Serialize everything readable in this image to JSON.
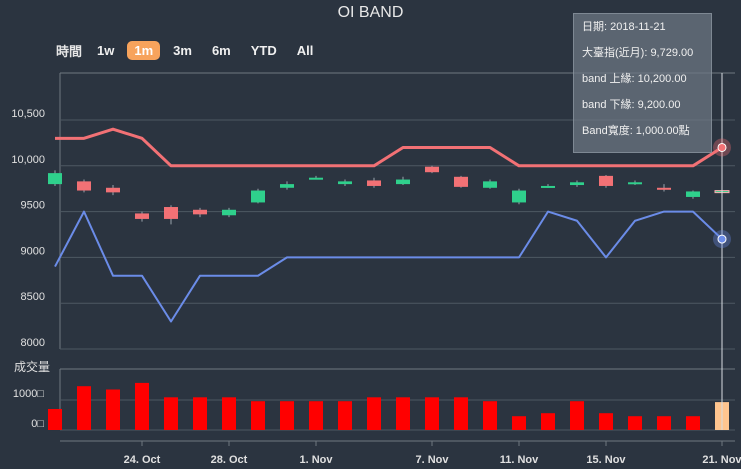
{
  "title": "OI BAND",
  "zoom": {
    "label": "時間",
    "buttons": [
      "1w",
      "1m",
      "3m",
      "6m",
      "YTD",
      "All"
    ],
    "selected": "1m"
  },
  "tooltip": {
    "date": "日期: 2018-11-21",
    "price": "大臺指(近月): 9,729.00",
    "upper": "band 上緣: 10,200.00",
    "lower": "band 下緣: 9,200.00",
    "width": "Band寬度: 1,000.00點"
  },
  "chart_data": {
    "type": "line",
    "dates": [
      "10-19",
      "10-22",
      "10-23",
      "10-24",
      "10-25",
      "10-26",
      "10-29",
      "10-30",
      "10-31",
      "11-01",
      "11-02",
      "11-05",
      "11-06",
      "11-07",
      "11-08",
      "11-09",
      "11-12",
      "11-13",
      "11-14",
      "11-15",
      "11-16",
      "11-19",
      "11-20",
      "11-21"
    ],
    "x_tick_labels": [
      {
        "date": "10-24",
        "label": "24. Oct"
      },
      {
        "date": "10-29",
        "label": "28. Oct"
      },
      {
        "date": "11-01",
        "label": "1. Nov"
      },
      {
        "date": "11-07",
        "label": "7. Nov"
      },
      {
        "date": "11-12",
        "label": "11. Nov"
      },
      {
        "date": "11-15",
        "label": "15. Nov"
      },
      {
        "date": "11-21",
        "label": "21. Nov"
      }
    ],
    "price_axis": {
      "ticks": [
        "8000",
        "8500",
        "9000",
        "9500",
        "10,000",
        "10,500"
      ],
      "range": [
        8000,
        11000
      ]
    },
    "volume_axis": {
      "title": "成交量",
      "ticks": [
        "0□",
        "1000□"
      ],
      "range": [
        0,
        2000
      ]
    },
    "series": [
      {
        "name": "band 上緣",
        "color": "#f27175",
        "values": [
          10300,
          10300,
          10400,
          10300,
          10000,
          10000,
          10000,
          10000,
          10000,
          10000,
          10000,
          10000,
          10200,
          10200,
          10200,
          10200,
          10000,
          10000,
          10000,
          10000,
          10000,
          10000,
          10000,
          10200
        ]
      },
      {
        "name": "band 下緣",
        "color": "#6b8ce8",
        "values": [
          8900,
          9500,
          8800,
          8800,
          8300,
          8800,
          8800,
          8800,
          9000,
          9000,
          9000,
          9000,
          9000,
          9000,
          9000,
          9000,
          9000,
          9500,
          9400,
          9000,
          9400,
          9500,
          9500,
          9200
        ]
      }
    ],
    "candles": [
      {
        "open": 9800,
        "close": 9920,
        "high": 9950,
        "low": 9780
      },
      {
        "open": 9830,
        "close": 9730,
        "high": 9850,
        "low": 9710
      },
      {
        "open": 9760,
        "close": 9710,
        "high": 9790,
        "low": 9680
      },
      {
        "open": 9480,
        "close": 9420,
        "high": 9500,
        "low": 9390
      },
      {
        "open": 9550,
        "close": 9420,
        "high": 9570,
        "low": 9360
      },
      {
        "open": 9520,
        "close": 9470,
        "high": 9540,
        "low": 9440
      },
      {
        "open": 9460,
        "close": 9520,
        "high": 9540,
        "low": 9440
      },
      {
        "open": 9600,
        "close": 9730,
        "high": 9750,
        "low": 9590
      },
      {
        "open": 9760,
        "close": 9800,
        "high": 9830,
        "low": 9740
      },
      {
        "open": 9860,
        "close": 9870,
        "high": 9890,
        "low": 9850
      },
      {
        "open": 9800,
        "close": 9830,
        "high": 9850,
        "low": 9780
      },
      {
        "open": 9840,
        "close": 9780,
        "high": 9870,
        "low": 9760
      },
      {
        "open": 9800,
        "close": 9850,
        "high": 9880,
        "low": 9790
      },
      {
        "open": 9990,
        "close": 9930,
        "high": 10000,
        "low": 9920
      },
      {
        "open": 9880,
        "close": 9770,
        "high": 9890,
        "low": 9760
      },
      {
        "open": 9760,
        "close": 9830,
        "high": 9850,
        "low": 9750
      },
      {
        "open": 9600,
        "close": 9730,
        "high": 9750,
        "low": 9580
      },
      {
        "open": 9770,
        "close": 9780,
        "high": 9800,
        "low": 9760
      },
      {
        "open": 9790,
        "close": 9820,
        "high": 9840,
        "low": 9770
      },
      {
        "open": 9890,
        "close": 9780,
        "high": 9900,
        "low": 9760
      },
      {
        "open": 9800,
        "close": 9820,
        "high": 9840,
        "low": 9790
      },
      {
        "open": 9760,
        "close": 9740,
        "high": 9800,
        "low": 9720
      },
      {
        "open": 9660,
        "close": 9720,
        "high": 9730,
        "low": 9640
      },
      {
        "open": 9729,
        "close": 9729,
        "high": 9740,
        "low": 9720
      }
    ],
    "volume": [
      700,
      1460,
      1350,
      1570,
      1090,
      1090,
      1090,
      960,
      960,
      960,
      960,
      1090,
      1090,
      1090,
      1090,
      960,
      460,
      560,
      960,
      560,
      460,
      460,
      460,
      930
    ],
    "up_color": "#2fd08c",
    "down_color": "#f27175",
    "volume_color": "#ff0000",
    "volume_highlight_color": "#ffc58f"
  }
}
